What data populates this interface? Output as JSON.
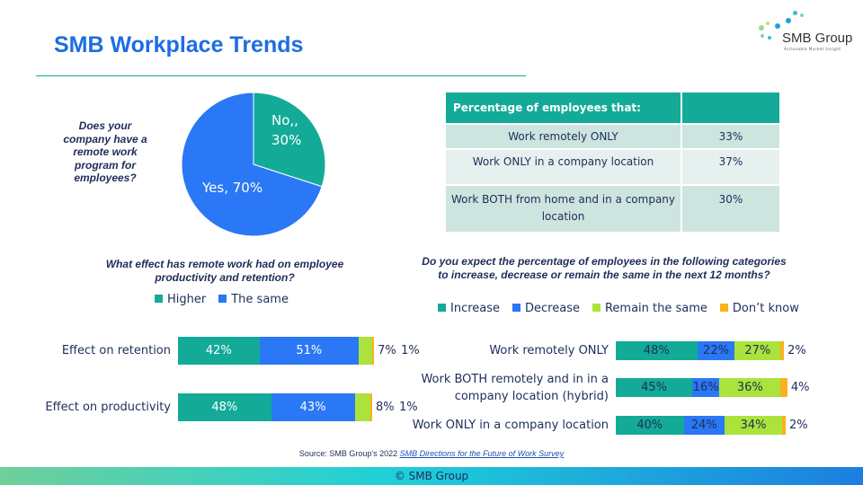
{
  "header": {
    "title": "SMB Workplace Trends",
    "logo_name": "SMB Group",
    "logo_tagline": "Actionable Market Insight"
  },
  "colors": {
    "increase": "#13ab98",
    "decrease": "#2a78f5",
    "same": "#abe33c",
    "dontknow": "#f9b21c",
    "title": "#1e6de0"
  },
  "pie_question": "Does your company have a remote work program for employees?",
  "table": {
    "header": "Percentage of employees that:",
    "rows": [
      {
        "label": "Work remotely ONLY",
        "value": "33%"
      },
      {
        "label": "Work ONLY in a company location",
        "value": "37%"
      },
      {
        "label": "Work BOTH from home and in a company location",
        "value": "30%"
      }
    ]
  },
  "chart_data": [
    {
      "type": "pie",
      "slices": [
        {
          "label": "No,,",
          "value": 30,
          "display": "No,,\n30%"
        },
        {
          "label": "Yes",
          "value": 70,
          "display": "Yes, 70%"
        }
      ]
    },
    {
      "type": "bar",
      "stacked": true,
      "orientation": "horizontal",
      "title": "What effect has remote work had on employee productivity and retention?",
      "legend": [
        "Higher",
        "The same"
      ],
      "categories": [
        "Effect on retention",
        "Effect on productivity"
      ],
      "series": [
        {
          "name": "Higher",
          "values": [
            42,
            48
          ]
        },
        {
          "name": "The same",
          "values": [
            51,
            43
          ]
        },
        {
          "values": [
            7,
            8
          ]
        },
        {
          "values": [
            1,
            1
          ]
        }
      ]
    },
    {
      "type": "bar",
      "stacked": true,
      "orientation": "horizontal",
      "title": "Do you expect the percentage of employees in the following categories to increase, decrease or remain the same in the next 12 months?",
      "legend": [
        "Increase",
        "Decrease",
        "Remain the same",
        "Don’t know"
      ],
      "categories": [
        "Work remotely ONLY",
        "Work BOTH remotely and in in a company location (hybrid)",
        "Work ONLY in a company location"
      ],
      "series": [
        {
          "name": "Increase",
          "values": [
            48,
            45,
            40
          ]
        },
        {
          "name": "Decrease",
          "values": [
            22,
            16,
            24
          ]
        },
        {
          "name": "Remain the same",
          "values": [
            27,
            36,
            34
          ]
        },
        {
          "name": "Don’t know",
          "values": [
            2,
            4,
            2
          ]
        }
      ]
    }
  ],
  "source": {
    "prefix": "Source: SMB Group's 2022 ",
    "link": "SMB Directions for the Future of Work Survey"
  },
  "footer": "© SMB Group"
}
